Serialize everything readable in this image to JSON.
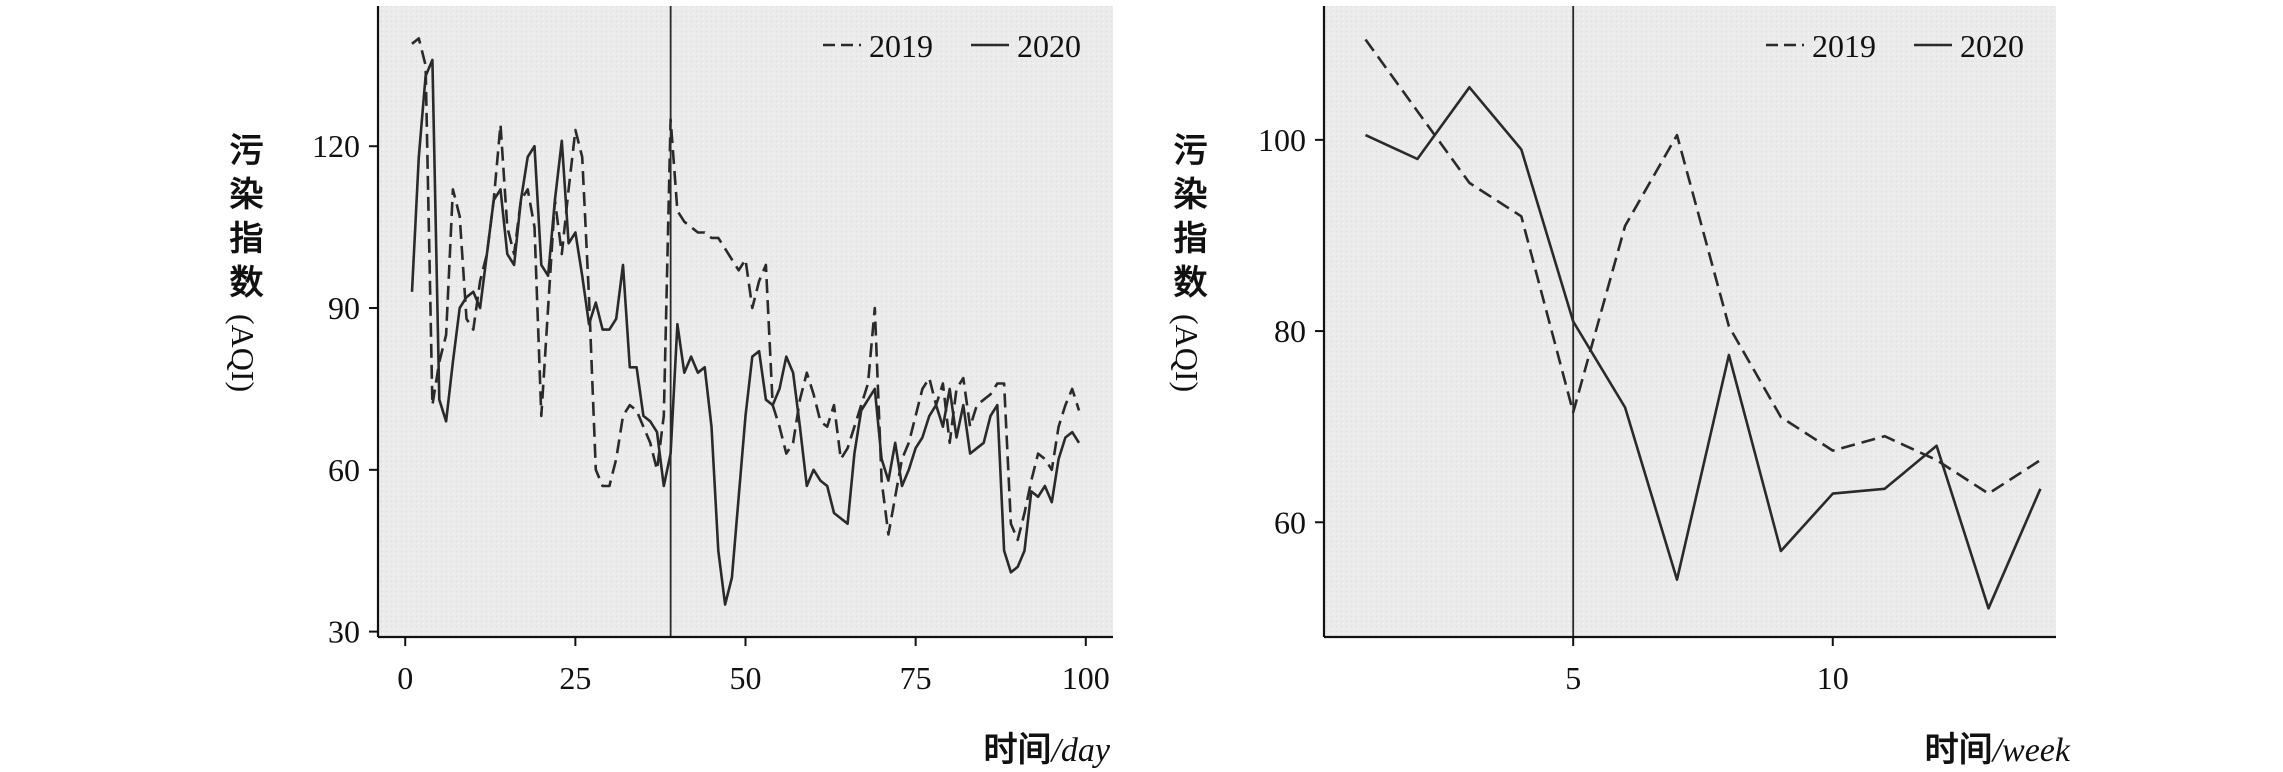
{
  "chart_data": [
    {
      "type": "line",
      "xlabel": {
        "cn": "时间",
        "unit": "/day"
      },
      "ylabel": {
        "cn": "污染指数",
        "en": "(AQI)"
      },
      "xlim": [
        -4,
        104
      ],
      "ylim": [
        29,
        146
      ],
      "xticks": [
        0,
        25,
        50,
        75,
        100
      ],
      "yticks": [
        30,
        60,
        90,
        120
      ],
      "vline": 39,
      "grid": false,
      "legend_position": "top-right",
      "series": [
        {
          "name": "2019",
          "style": "dashed",
          "points": [
            [
              1,
              139
            ],
            [
              2,
              140
            ],
            [
              3,
              135
            ],
            [
              4,
              72
            ],
            [
              5,
              80
            ],
            [
              6,
              85
            ],
            [
              7,
              112
            ],
            [
              8,
              107
            ],
            [
              9,
              88
            ],
            [
              10,
              86
            ],
            [
              11,
              95
            ],
            [
              12,
              100
            ],
            [
              13,
              110
            ],
            [
              14,
              124
            ],
            [
              15,
              105
            ],
            [
              16,
              100
            ],
            [
              17,
              110
            ],
            [
              18,
              112
            ],
            [
              19,
              105
            ],
            [
              20,
              70
            ],
            [
              21,
              90
            ],
            [
              22,
              110
            ],
            [
              23,
              100
            ],
            [
              24,
              112
            ],
            [
              25,
              123
            ],
            [
              26,
              118
            ],
            [
              27,
              92
            ],
            [
              28,
              60
            ],
            [
              29,
              57
            ],
            [
              30,
              57
            ],
            [
              31,
              62
            ],
            [
              32,
              70
            ],
            [
              33,
              72
            ],
            [
              34,
              71
            ],
            [
              35,
              68
            ],
            [
              36,
              65
            ],
            [
              37,
              60
            ],
            [
              38,
              70
            ],
            [
              39,
              125
            ],
            [
              40,
              108
            ],
            [
              41,
              106
            ],
            [
              42,
              105
            ],
            [
              43,
              104
            ],
            [
              44,
              104
            ],
            [
              45,
              103
            ],
            [
              46,
              103
            ],
            [
              47,
              101
            ],
            [
              48,
              99
            ],
            [
              49,
              97
            ],
            [
              50,
              99
            ],
            [
              51,
              90
            ],
            [
              52,
              95
            ],
            [
              53,
              98
            ],
            [
              54,
              72
            ],
            [
              55,
              68
            ],
            [
              56,
              63
            ],
            [
              57,
              65
            ],
            [
              58,
              73
            ],
            [
              59,
              78
            ],
            [
              60,
              74
            ],
            [
              61,
              69
            ],
            [
              62,
              68
            ],
            [
              63,
              72
            ],
            [
              64,
              62
            ],
            [
              65,
              64
            ],
            [
              66,
              68
            ],
            [
              67,
              72
            ],
            [
              68,
              76
            ],
            [
              69,
              90
            ],
            [
              70,
              58
            ],
            [
              71,
              48
            ],
            [
              72,
              55
            ],
            [
              73,
              62
            ],
            [
              74,
              65
            ],
            [
              75,
              70
            ],
            [
              76,
              75
            ],
            [
              77,
              77
            ],
            [
              78,
              72
            ],
            [
              79,
              76
            ],
            [
              80,
              65
            ],
            [
              81,
              75
            ],
            [
              82,
              77
            ],
            [
              83,
              68
            ],
            [
              84,
              72
            ],
            [
              85,
              73
            ],
            [
              86,
              74
            ],
            [
              87,
              76
            ],
            [
              88,
              76
            ],
            [
              89,
              50
            ],
            [
              90,
              47
            ],
            [
              91,
              52
            ],
            [
              92,
              58
            ],
            [
              93,
              63
            ],
            [
              94,
              62
            ],
            [
              95,
              60
            ],
            [
              96,
              68
            ],
            [
              97,
              72
            ],
            [
              98,
              75
            ],
            [
              99,
              71
            ]
          ]
        },
        {
          "name": "2020",
          "style": "solid",
          "points": [
            [
              1,
              93
            ],
            [
              2,
              118
            ],
            [
              3,
              133
            ],
            [
              4,
              136
            ],
            [
              5,
              73
            ],
            [
              6,
              69
            ],
            [
              7,
              80
            ],
            [
              8,
              90
            ],
            [
              9,
              92
            ],
            [
              10,
              93
            ],
            [
              11,
              90
            ],
            [
              12,
              100
            ],
            [
              13,
              110
            ],
            [
              14,
              112
            ],
            [
              15,
              100
            ],
            [
              16,
              98
            ],
            [
              17,
              110
            ],
            [
              18,
              118
            ],
            [
              19,
              120
            ],
            [
              20,
              98
            ],
            [
              21,
              96
            ],
            [
              22,
              110
            ],
            [
              23,
              121
            ],
            [
              24,
              102
            ],
            [
              25,
              104
            ],
            [
              26,
              96
            ],
            [
              27,
              87
            ],
            [
              28,
              91
            ],
            [
              29,
              86
            ],
            [
              30,
              86
            ],
            [
              31,
              88
            ],
            [
              32,
              98
            ],
            [
              33,
              79
            ],
            [
              34,
              79
            ],
            [
              35,
              70
            ],
            [
              36,
              69
            ],
            [
              37,
              67
            ],
            [
              38,
              57
            ],
            [
              39,
              63
            ],
            [
              40,
              87
            ],
            [
              41,
              78
            ],
            [
              42,
              81
            ],
            [
              43,
              78
            ],
            [
              44,
              79
            ],
            [
              45,
              68
            ],
            [
              46,
              45
            ],
            [
              47,
              35
            ],
            [
              48,
              40
            ],
            [
              49,
              55
            ],
            [
              50,
              70
            ],
            [
              51,
              81
            ],
            [
              52,
              82
            ],
            [
              53,
              73
            ],
            [
              54,
              72
            ],
            [
              55,
              75
            ],
            [
              56,
              81
            ],
            [
              57,
              78
            ],
            [
              58,
              68
            ],
            [
              59,
              57
            ],
            [
              60,
              60
            ],
            [
              61,
              58
            ],
            [
              62,
              57
            ],
            [
              63,
              52
            ],
            [
              64,
              51
            ],
            [
              65,
              50
            ],
            [
              66,
              63
            ],
            [
              67,
              71
            ],
            [
              68,
              73
            ],
            [
              69,
              75
            ],
            [
              70,
              62
            ],
            [
              71,
              58
            ],
            [
              72,
              65
            ],
            [
              73,
              57
            ],
            [
              74,
              60
            ],
            [
              75,
              64
            ],
            [
              76,
              66
            ],
            [
              77,
              70
            ],
            [
              78,
              72
            ],
            [
              79,
              68
            ],
            [
              80,
              75
            ],
            [
              81,
              66
            ],
            [
              82,
              72
            ],
            [
              83,
              63
            ],
            [
              84,
              64
            ],
            [
              85,
              65
            ],
            [
              86,
              70
            ],
            [
              87,
              72
            ],
            [
              88,
              45
            ],
            [
              89,
              41
            ],
            [
              90,
              42
            ],
            [
              91,
              45
            ],
            [
              92,
              56
            ],
            [
              93,
              55
            ],
            [
              94,
              57
            ],
            [
              95,
              54
            ],
            [
              96,
              62
            ],
            [
              97,
              66
            ],
            [
              98,
              67
            ],
            [
              99,
              65
            ]
          ]
        }
      ]
    },
    {
      "type": "line",
      "xlabel": {
        "cn": "时间",
        "unit": "/week"
      },
      "ylabel": {
        "cn": "污染指数",
        "en": "(AQI)"
      },
      "xlim": [
        0.2,
        14.3
      ],
      "ylim": [
        48,
        114
      ],
      "xticks": [
        5,
        10
      ],
      "yticks": [
        60,
        80,
        100
      ],
      "vline": 5,
      "grid": false,
      "legend_position": "top-right",
      "series": [
        {
          "name": "2019",
          "style": "dashed",
          "points": [
            [
              1,
              110.5
            ],
            [
              2,
              103
            ],
            [
              3,
              95.5
            ],
            [
              4,
              92
            ],
            [
              5,
              71.5
            ],
            [
              6,
              91
            ],
            [
              7,
              100.5
            ],
            [
              8,
              80.5
            ],
            [
              9,
              71
            ],
            [
              10,
              67.5
            ],
            [
              11,
              69
            ],
            [
              12,
              66.5
            ],
            [
              13,
              63
            ],
            [
              14,
              66.5
            ]
          ]
        },
        {
          "name": "2020",
          "style": "solid",
          "points": [
            [
              1,
              100.5
            ],
            [
              2,
              98
            ],
            [
              3,
              105.5
            ],
            [
              4,
              99
            ],
            [
              5,
              81
            ],
            [
              6,
              72
            ],
            [
              7,
              54
            ],
            [
              8,
              77.5
            ],
            [
              9,
              57
            ],
            [
              10,
              63
            ],
            [
              11,
              63.5
            ],
            [
              12,
              68
            ],
            [
              13,
              51
            ],
            [
              14,
              63.5
            ]
          ]
        }
      ]
    }
  ]
}
